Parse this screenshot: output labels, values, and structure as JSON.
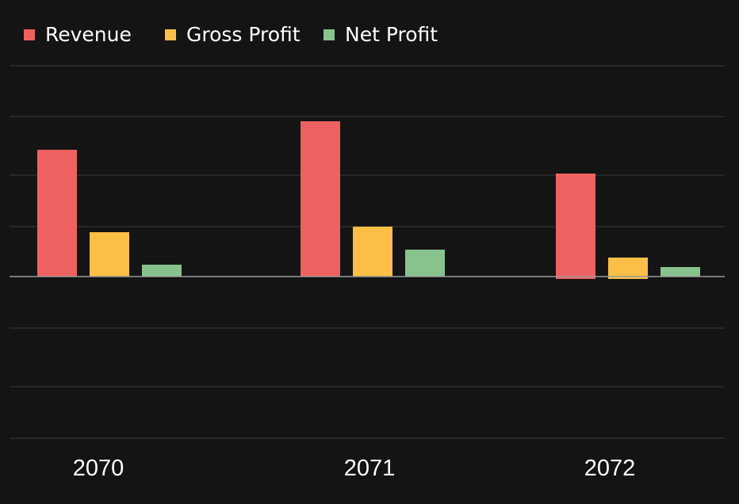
{
  "chart_data": {
    "type": "bar",
    "title": "",
    "xlabel": "",
    "ylabel": "",
    "categories": [
      "2070",
      "2071",
      "2072"
    ],
    "series": [
      {
        "name": "Revenue",
        "color": "#ee6161",
        "values": [
          160,
          196,
          130
        ]
      },
      {
        "name": "Gross Profit",
        "color": "#fcbf45",
        "values": [
          56,
          63,
          24
        ]
      },
      {
        "name": "Net Profit",
        "color": "#88c38d",
        "values": [
          15,
          34,
          12
        ]
      }
    ],
    "negatives": [
      {
        "series": "Revenue",
        "category": "2072",
        "value": -3
      },
      {
        "series": "Gross Profit",
        "category": "2072",
        "value": -3
      }
    ],
    "ylim": [
      -204,
      268
    ],
    "gridlines": [
      266,
      202,
      128,
      63,
      -65,
      -139,
      -204
    ],
    "grid": true,
    "legend": "top-left",
    "tick_labels_visible": false
  }
}
